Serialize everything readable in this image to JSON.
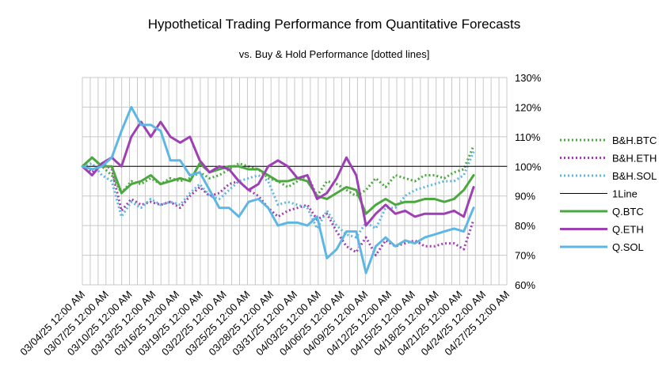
{
  "chart_data": {
    "type": "line",
    "title": "Hypothetical Trading Performance from Quantitative Forecasts",
    "subtitle": "vs. Buy & Hold Performance [dotted lines]",
    "xlabel": "",
    "ylabel": "",
    "ylim": [
      0.6,
      1.3
    ],
    "y_ticks": [
      "60%",
      "70%",
      "80%",
      "90%",
      "100%",
      "110%",
      "120%",
      "130%"
    ],
    "x_ticks": [
      "03/04/25 12:00 AM",
      "03/07/25 12:00 AM",
      "03/10/25 12:00 AM",
      "03/13/25 12:00 AM",
      "03/16/25 12:00 AM",
      "03/19/25 12:00 AM",
      "03/22/25 12:00 AM",
      "03/25/25 12:00 AM",
      "03/28/25 12:00 AM",
      "03/31/25 12:00 AM",
      "04/03/25 12:00 AM",
      "04/06/25 12:00 AM",
      "04/09/25 12:00 AM",
      "04/12/25 12:00 AM",
      "04/15/25 12:00 AM",
      "04/18/25 12:00 AM",
      "04/21/25 12:00 AM",
      "04/24/25 12:00 AM",
      "04/27/25 12:00 AM"
    ],
    "grid": true,
    "legend": "right",
    "series": [
      {
        "name": "B&H.BTC",
        "color": "#4aa83e",
        "dash": "dotted",
        "values": [
          1.0,
          1.03,
          1.0,
          0.97,
          0.91,
          0.95,
          0.94,
          0.96,
          0.94,
          0.96,
          0.95,
          0.96,
          0.98,
          0.96,
          0.97,
          0.99,
          1.01,
          1.0,
          0.99,
          0.96,
          0.95,
          0.93,
          0.95,
          0.97,
          0.9,
          0.95,
          0.94,
          0.92,
          0.9,
          0.92,
          0.96,
          0.93,
          0.97,
          0.96,
          0.95,
          0.97,
          0.97,
          0.96,
          0.98,
          0.99,
          1.07
        ]
      },
      {
        "name": "B&H.ETH",
        "color": "#9f3fb4",
        "dash": "dotted",
        "values": [
          1.0,
          0.98,
          1.01,
          0.99,
          0.85,
          0.89,
          0.87,
          0.88,
          0.87,
          0.88,
          0.86,
          0.9,
          0.93,
          0.9,
          0.91,
          0.94,
          0.95,
          0.92,
          0.9,
          0.86,
          0.83,
          0.85,
          0.86,
          0.87,
          0.82,
          0.84,
          0.78,
          0.73,
          0.71,
          0.76,
          0.7,
          0.75,
          0.73,
          0.74,
          0.75,
          0.73,
          0.73,
          0.74,
          0.74,
          0.72,
          0.82
        ]
      },
      {
        "name": "B&H.SOL",
        "color": "#5db7e4",
        "dash": "dotted",
        "values": [
          1.0,
          1.01,
          0.97,
          0.95,
          0.83,
          0.88,
          0.86,
          0.89,
          0.87,
          0.88,
          0.87,
          0.91,
          0.94,
          0.9,
          0.89,
          0.92,
          0.95,
          0.96,
          0.97,
          0.95,
          0.87,
          0.88,
          0.87,
          0.86,
          0.79,
          0.85,
          0.8,
          0.77,
          0.76,
          0.81,
          0.79,
          0.86,
          0.86,
          0.9,
          0.92,
          0.93,
          0.94,
          0.95,
          0.95,
          0.97,
          1.05
        ]
      },
      {
        "name": "1Line",
        "color": "#000000",
        "dash": "solid",
        "values": [
          1,
          1,
          1,
          1,
          1,
          1,
          1,
          1,
          1,
          1,
          1,
          1,
          1,
          1,
          1,
          1,
          1,
          1,
          1,
          1,
          1,
          1,
          1,
          1,
          1,
          1,
          1,
          1,
          1,
          1,
          1,
          1,
          1,
          1,
          1,
          1,
          1,
          1,
          1,
          1,
          1
        ]
      },
      {
        "name": "Q.BTC",
        "color": "#4aa83e",
        "dash": "solid",
        "values": [
          1.0,
          1.03,
          1.0,
          1.0,
          0.91,
          0.94,
          0.95,
          0.97,
          0.94,
          0.95,
          0.96,
          0.95,
          1.01,
          0.98,
          0.99,
          1.0,
          1.0,
          0.99,
          0.99,
          0.97,
          0.95,
          0.95,
          0.96,
          0.95,
          0.9,
          0.89,
          0.91,
          0.93,
          0.92,
          0.84,
          0.87,
          0.89,
          0.87,
          0.88,
          0.88,
          0.89,
          0.89,
          0.88,
          0.89,
          0.92,
          0.97
        ]
      },
      {
        "name": "Q.ETH",
        "color": "#9f3fb4",
        "dash": "solid",
        "values": [
          1.0,
          0.97,
          1.01,
          1.03,
          1.0,
          1.1,
          1.15,
          1.1,
          1.15,
          1.1,
          1.08,
          1.1,
          1.02,
          0.98,
          1.0,
          0.99,
          0.95,
          0.92,
          0.94,
          1.0,
          1.02,
          1.0,
          0.96,
          0.97,
          0.89,
          0.91,
          0.96,
          1.03,
          0.97,
          0.8,
          0.84,
          0.87,
          0.84,
          0.85,
          0.83,
          0.84,
          0.84,
          0.84,
          0.85,
          0.83,
          0.93
        ]
      },
      {
        "name": "Q.SOL",
        "color": "#5db7e4",
        "dash": "solid",
        "values": [
          1.0,
          0.99,
          1.0,
          1.03,
          1.12,
          1.2,
          1.14,
          1.14,
          1.12,
          1.02,
          1.02,
          0.97,
          0.98,
          0.92,
          0.86,
          0.86,
          0.83,
          0.88,
          0.89,
          0.86,
          0.8,
          0.81,
          0.81,
          0.8,
          0.83,
          0.69,
          0.72,
          0.78,
          0.78,
          0.64,
          0.73,
          0.76,
          0.73,
          0.75,
          0.74,
          0.76,
          0.77,
          0.78,
          0.79,
          0.78,
          0.86
        ]
      }
    ]
  }
}
